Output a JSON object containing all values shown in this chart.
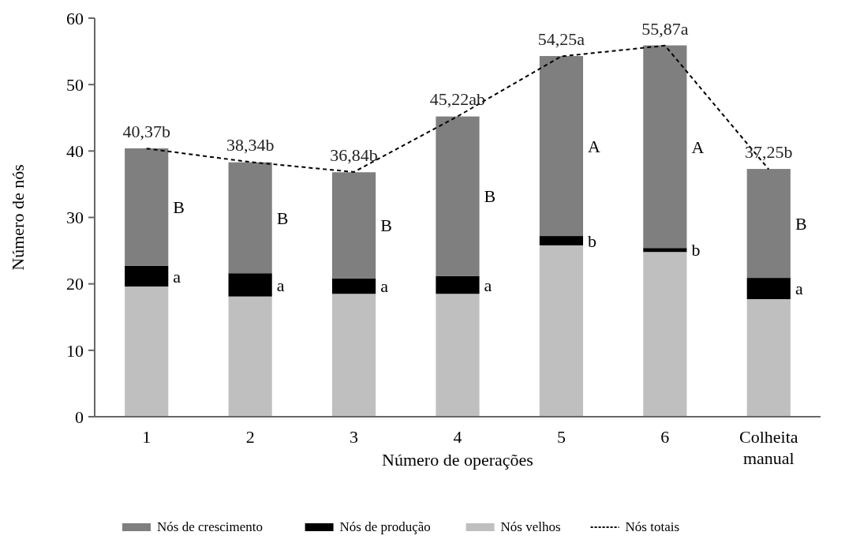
{
  "chart_data": {
    "type": "bar",
    "stacked": true,
    "xlabel": "Número de operações",
    "ylabel": "Número de nós",
    "categories": [
      "1",
      "2",
      "3",
      "4",
      "5",
      "6",
      "Colheita manual"
    ],
    "ylim": [
      0,
      60
    ],
    "yticks": [
      0,
      10,
      20,
      30,
      40,
      50,
      60
    ],
    "grid": false,
    "legend": "bottom",
    "series": [
      {
        "name": "Nós velhos",
        "color": "#bfbfbf",
        "values": [
          19.6,
          18.1,
          18.5,
          18.5,
          25.8,
          24.8,
          17.7
        ]
      },
      {
        "name": "Nós de produção",
        "color": "#000000",
        "values": [
          3.1,
          3.5,
          2.3,
          2.7,
          1.4,
          0.6,
          3.2
        ],
        "value_labels": [
          "a",
          "a",
          "a",
          "a",
          "b",
          "b",
          "a"
        ]
      },
      {
        "name": "Nós de crescimento",
        "color": "#7f7f7f",
        "values": [
          17.7,
          16.7,
          16.0,
          24.0,
          27.1,
          30.5,
          16.4
        ],
        "value_labels": [
          "B",
          "B",
          "B",
          "B",
          "A",
          "A",
          "B"
        ]
      },
      {
        "name": "Nós totais",
        "type": "line",
        "color": "#000000",
        "line_style": "dashed",
        "values": [
          40.37,
          38.34,
          36.84,
          45.22,
          54.25,
          55.87,
          37.25
        ],
        "value_labels": [
          "40,37b",
          "38,34b",
          "36,84b",
          "45,22ab",
          "54,25a",
          "55,87a",
          "37,25b"
        ]
      }
    ]
  }
}
